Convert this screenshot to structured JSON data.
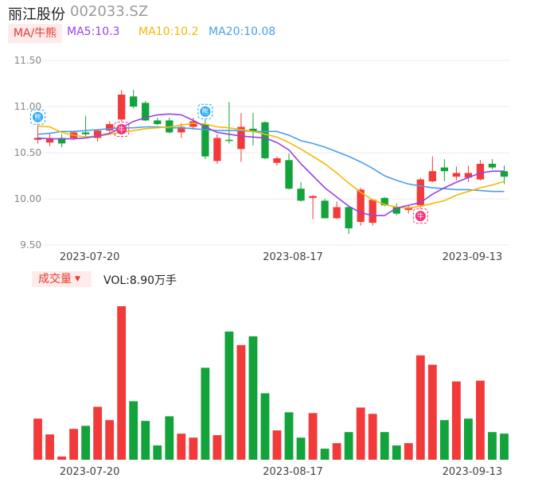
{
  "header": {
    "stock_name": "丽江股份",
    "stock_code": "002033.SZ"
  },
  "ma_bar": {
    "tag_label": "MA/牛熊",
    "ma5_label": "MA5:10.3",
    "ma10_label": "MA10:10.2",
    "ma20_label": "MA20:10.08",
    "ma5_color": "#9b40e6",
    "ma10_color": "#f5b800",
    "ma20_color": "#4a9eea"
  },
  "volume_bar": {
    "tag_label": "成交量",
    "vol_label": "VOL:8.90万手"
  },
  "colors": {
    "up": "#f23a3a",
    "down": "#12a33b"
  },
  "chart_data": {
    "type": "candlestick",
    "y_ticks": [
      "11.50",
      "11.00",
      "10.50",
      "10.00",
      "9.50"
    ],
    "ylim": [
      9.5,
      11.5
    ],
    "x_tick_labels": [
      "2023-07-20",
      "2023-08-17",
      "2023-09-13"
    ],
    "x_tick_index": [
      5,
      22,
      37
    ],
    "candles": [
      {
        "o": 10.64,
        "h": 10.8,
        "l": 10.6,
        "c": 10.66
      },
      {
        "o": 10.61,
        "h": 10.71,
        "l": 10.57,
        "c": 10.66
      },
      {
        "o": 10.66,
        "h": 10.7,
        "l": 10.56,
        "c": 10.6
      },
      {
        "o": 10.66,
        "h": 10.74,
        "l": 10.64,
        "c": 10.72
      },
      {
        "o": 10.72,
        "h": 10.9,
        "l": 10.66,
        "c": 10.7
      },
      {
        "o": 10.66,
        "h": 10.75,
        "l": 10.62,
        "c": 10.74
      },
      {
        "o": 10.74,
        "h": 10.84,
        "l": 10.7,
        "c": 10.81
      },
      {
        "o": 10.86,
        "h": 11.18,
        "l": 10.84,
        "c": 11.13
      },
      {
        "o": 11.11,
        "h": 11.18,
        "l": 10.98,
        "c": 11.0
      },
      {
        "o": 11.04,
        "h": 11.06,
        "l": 10.84,
        "c": 10.85
      },
      {
        "o": 10.85,
        "h": 10.88,
        "l": 10.8,
        "c": 10.81
      },
      {
        "o": 10.85,
        "h": 10.88,
        "l": 10.71,
        "c": 10.72
      },
      {
        "o": 10.72,
        "h": 10.82,
        "l": 10.66,
        "c": 10.78
      },
      {
        "o": 10.78,
        "h": 10.88,
        "l": 10.75,
        "c": 10.84
      },
      {
        "o": 10.81,
        "h": 10.86,
        "l": 10.43,
        "c": 10.46
      },
      {
        "o": 10.41,
        "h": 10.7,
        "l": 10.38,
        "c": 10.66
      },
      {
        "o": 10.64,
        "h": 11.05,
        "l": 10.6,
        "c": 10.63
      },
      {
        "o": 10.54,
        "h": 10.93,
        "l": 10.4,
        "c": 10.78
      },
      {
        "o": 10.76,
        "h": 10.93,
        "l": 10.58,
        "c": 10.73
      },
      {
        "o": 10.83,
        "h": 10.84,
        "l": 10.43,
        "c": 10.44
      },
      {
        "o": 10.39,
        "h": 10.46,
        "l": 10.36,
        "c": 10.44
      },
      {
        "o": 10.42,
        "h": 10.49,
        "l": 10.1,
        "c": 10.11
      },
      {
        "o": 10.11,
        "h": 10.18,
        "l": 9.97,
        "c": 9.98
      },
      {
        "o": 10.01,
        "h": 10.04,
        "l": 9.78,
        "c": 10.03
      },
      {
        "o": 9.98,
        "h": 10.0,
        "l": 9.79,
        "c": 9.79
      },
      {
        "o": 9.79,
        "h": 9.97,
        "l": 9.78,
        "c": 9.91
      },
      {
        "o": 9.91,
        "h": 9.93,
        "l": 9.62,
        "c": 9.68
      },
      {
        "o": 9.75,
        "h": 10.12,
        "l": 9.71,
        "c": 10.1
      },
      {
        "o": 9.74,
        "h": 10.0,
        "l": 9.71,
        "c": 9.99
      },
      {
        "o": 10.01,
        "h": 10.02,
        "l": 9.92,
        "c": 9.93
      },
      {
        "o": 9.91,
        "h": 9.95,
        "l": 9.82,
        "c": 9.84
      },
      {
        "o": 9.88,
        "h": 9.93,
        "l": 9.84,
        "c": 9.91
      },
      {
        "o": 9.93,
        "h": 10.23,
        "l": 9.9,
        "c": 10.21
      },
      {
        "o": 10.19,
        "h": 10.46,
        "l": 10.18,
        "c": 10.3
      },
      {
        "o": 10.34,
        "h": 10.43,
        "l": 10.19,
        "c": 10.3
      },
      {
        "o": 10.24,
        "h": 10.35,
        "l": 10.2,
        "c": 10.28
      },
      {
        "o": 10.23,
        "h": 10.36,
        "l": 10.18,
        "c": 10.28
      },
      {
        "o": 10.21,
        "h": 10.42,
        "l": 10.2,
        "c": 10.38
      },
      {
        "o": 10.38,
        "h": 10.43,
        "l": 10.32,
        "c": 10.34
      },
      {
        "o": 10.3,
        "h": 10.36,
        "l": 10.16,
        "c": 10.24
      }
    ],
    "ma5": [
      10.66,
      10.65,
      10.65,
      10.65,
      10.66,
      10.68,
      10.71,
      10.77,
      10.84,
      10.88,
      10.91,
      10.92,
      10.91,
      10.85,
      10.78,
      10.72,
      10.7,
      10.68,
      10.67,
      10.66,
      10.61,
      10.53,
      10.38,
      10.25,
      10.12,
      10.02,
      9.92,
      9.85,
      9.82,
      9.82,
      9.9,
      9.93,
      9.96,
      10.05,
      10.12,
      10.18,
      10.23,
      10.28,
      10.3,
      10.3
    ],
    "ma10": [
      10.79,
      10.78,
      10.72,
      10.69,
      10.67,
      10.68,
      10.7,
      10.72,
      10.74,
      10.76,
      10.77,
      10.78,
      10.8,
      10.82,
      10.81,
      10.78,
      10.77,
      10.75,
      10.73,
      10.7,
      10.67,
      10.61,
      10.54,
      10.46,
      10.38,
      10.28,
      10.17,
      10.07,
      9.99,
      9.94,
      9.91,
      9.9,
      9.92,
      9.95,
      9.98,
      10.04,
      10.08,
      10.12,
      10.15,
      10.19
    ],
    "ma20": [
      10.7,
      10.71,
      10.73,
      10.73,
      10.74,
      10.75,
      10.76,
      10.77,
      10.77,
      10.78,
      10.78,
      10.77,
      10.77,
      10.76,
      10.75,
      10.74,
      10.74,
      10.74,
      10.73,
      10.73,
      10.73,
      10.69,
      10.63,
      10.6,
      10.56,
      10.51,
      10.46,
      10.4,
      10.33,
      10.25,
      10.2,
      10.16,
      10.14,
      10.12,
      10.11,
      10.1,
      10.1,
      10.09,
      10.08,
      10.08
    ],
    "volume_up": [
      true,
      true,
      true,
      true,
      false,
      true,
      true,
      true,
      false,
      false,
      false,
      false,
      true,
      true,
      false,
      true,
      false,
      true,
      false,
      false,
      true,
      false,
      false,
      true,
      false,
      true,
      false,
      true,
      true,
      false,
      false,
      true,
      true,
      true,
      false,
      true,
      false,
      true,
      false,
      false
    ],
    "volume_rel": [
      0.268,
      0.165,
      0.021,
      0.201,
      0.221,
      0.345,
      0.258,
      1.0,
      0.381,
      0.253,
      0.093,
      0.283,
      0.17,
      0.144,
      0.599,
      0.16,
      0.835,
      0.747,
      0.804,
      0.433,
      0.191,
      0.309,
      0.144,
      0.304,
      0.072,
      0.108,
      0.18,
      0.34,
      0.299,
      0.18,
      0.093,
      0.108,
      0.68,
      0.619,
      0.258,
      0.51,
      0.268,
      0.515,
      0.18,
      0.17
    ],
    "markers": [
      {
        "index": 0,
        "label": "熊",
        "kind": "bear"
      },
      {
        "index": 7,
        "label": "牛",
        "kind": "bull"
      },
      {
        "index": 14,
        "label": "熊",
        "kind": "bear"
      },
      {
        "index": 32,
        "label": "牛",
        "kind": "bull"
      }
    ]
  }
}
